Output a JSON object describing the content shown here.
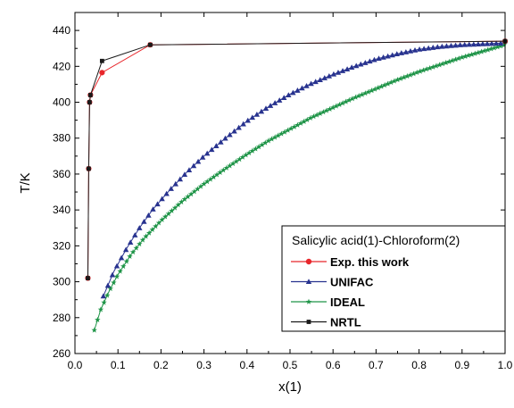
{
  "chart_data": {
    "type": "line",
    "xlabel": "x(1)",
    "ylabel": "T/K",
    "xlim": [
      0.0,
      1.0
    ],
    "ylim": [
      260,
      450
    ],
    "x_ticks": [
      "0.0",
      "0.1",
      "0.2",
      "0.3",
      "0.4",
      "0.5",
      "0.6",
      "0.7",
      "0.8",
      "0.9",
      "1.0"
    ],
    "y_ticks": [
      "260",
      "280",
      "300",
      "320",
      "340",
      "360",
      "380",
      "400",
      "420",
      "440"
    ],
    "legend_title": "Salicylic acid(1)-Chloroform(2)",
    "legend_position": "bottom-right",
    "series": [
      {
        "name": "Exp. this work",
        "color": "#e8262b",
        "marker": "circle",
        "x": [
          0.03,
          0.032,
          0.034,
          0.036,
          0.063,
          0.175,
          1.0
        ],
        "y": [
          302.0,
          363.0,
          400.0,
          404.0,
          416.5,
          432.0,
          434.0
        ]
      },
      {
        "name": "UNIFAC",
        "color": "#28338f",
        "marker": "triangle",
        "x": [
          0.066,
          0.09,
          0.12,
          0.15,
          0.18,
          0.22,
          0.26,
          0.3,
          0.35,
          0.4,
          0.45,
          0.5,
          0.55,
          0.6,
          0.65,
          0.7,
          0.75,
          0.8,
          0.85,
          0.9,
          0.95,
          1.0
        ],
        "y": [
          292.0,
          305.5,
          318.5,
          330.0,
          340.0,
          351.0,
          361.0,
          370.0,
          380.0,
          389.5,
          397.5,
          404.5,
          410.5,
          415.5,
          420.0,
          424.0,
          427.0,
          429.5,
          431.0,
          432.0,
          432.5,
          433.0
        ]
      },
      {
        "name": "IDEAL",
        "color": "#1e9447",
        "marker": "star",
        "x": [
          0.045,
          0.06,
          0.08,
          0.1,
          0.13,
          0.16,
          0.2,
          0.25,
          0.3,
          0.35,
          0.4,
          0.45,
          0.5,
          0.55,
          0.6,
          0.65,
          0.7,
          0.75,
          0.8,
          0.85,
          0.9,
          0.95,
          1.0
        ],
        "y": [
          273.0,
          284.5,
          295.0,
          304.0,
          315.0,
          324.0,
          334.0,
          345.0,
          354.5,
          363.0,
          371.0,
          378.5,
          385.0,
          391.5,
          397.0,
          402.5,
          407.5,
          412.5,
          417.0,
          421.0,
          425.0,
          428.5,
          432.0
        ]
      },
      {
        "name": "NRTL",
        "color": "#1a1a1a",
        "marker": "square",
        "x": [
          0.03,
          0.032,
          0.034,
          0.036,
          0.063,
          0.175,
          1.0
        ],
        "y": [
          302.0,
          363.0,
          400.0,
          404.0,
          423.0,
          432.0,
          434.0
        ]
      }
    ]
  }
}
